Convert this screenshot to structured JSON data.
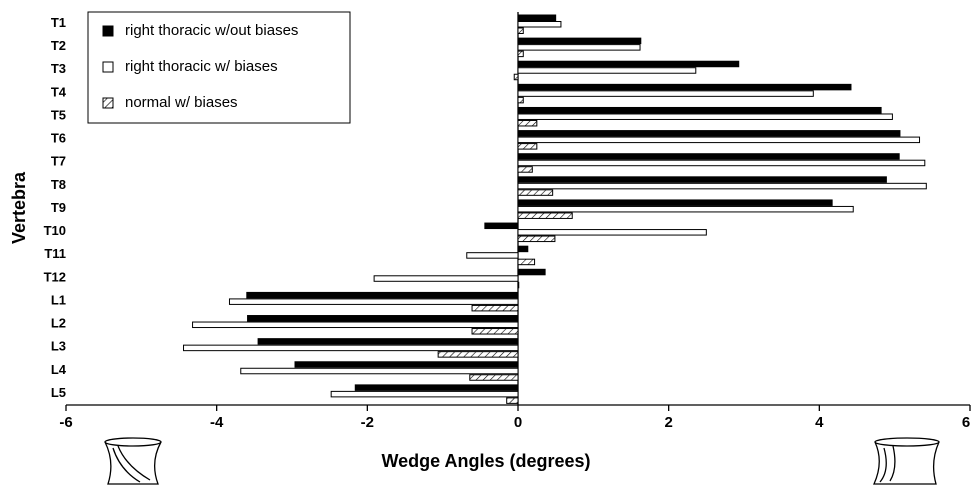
{
  "chart_data": {
    "type": "hbar",
    "xlabel": "Wedge Angles (degrees)",
    "ylabel": "Vertebra",
    "categories": [
      "T1",
      "T2",
      "T3",
      "T4",
      "T5",
      "T6",
      "T7",
      "T8",
      "T9",
      "T10",
      "T11",
      "T12",
      "L1",
      "L2",
      "L3",
      "L4",
      "L5"
    ],
    "series": [
      {
        "name": "right thoracic w/out biases",
        "color": "#000000",
        "hatch": false,
        "values": [
          0.5,
          1.63,
          2.93,
          4.42,
          4.82,
          5.07,
          5.06,
          4.89,
          4.17,
          -0.44,
          0.13,
          0.36,
          -3.6,
          -3.59,
          -3.45,
          -2.96,
          -2.16
        ]
      },
      {
        "name": "right thoracic w/ biases",
        "color": "#ffffff",
        "hatch": false,
        "values": [
          0.57,
          1.62,
          2.36,
          3.92,
          4.97,
          5.33,
          5.4,
          5.42,
          4.45,
          2.5,
          -0.68,
          -1.91,
          -3.83,
          -4.32,
          -4.44,
          -3.68,
          -2.48
        ]
      },
      {
        "name": "normal w/ biases",
        "color": "#ffffff",
        "hatch": true,
        "values": [
          0.07,
          0.07,
          -0.05,
          0.07,
          0.25,
          0.25,
          0.19,
          0.46,
          0.72,
          0.49,
          0.22,
          0.01,
          -0.61,
          -0.61,
          -1.06,
          -0.64,
          -0.15
        ]
      }
    ],
    "xlim": [
      -6,
      6
    ],
    "xticks": [
      -6,
      -4,
      -2,
      0,
      2,
      4,
      6
    ],
    "legend": "upper left"
  }
}
